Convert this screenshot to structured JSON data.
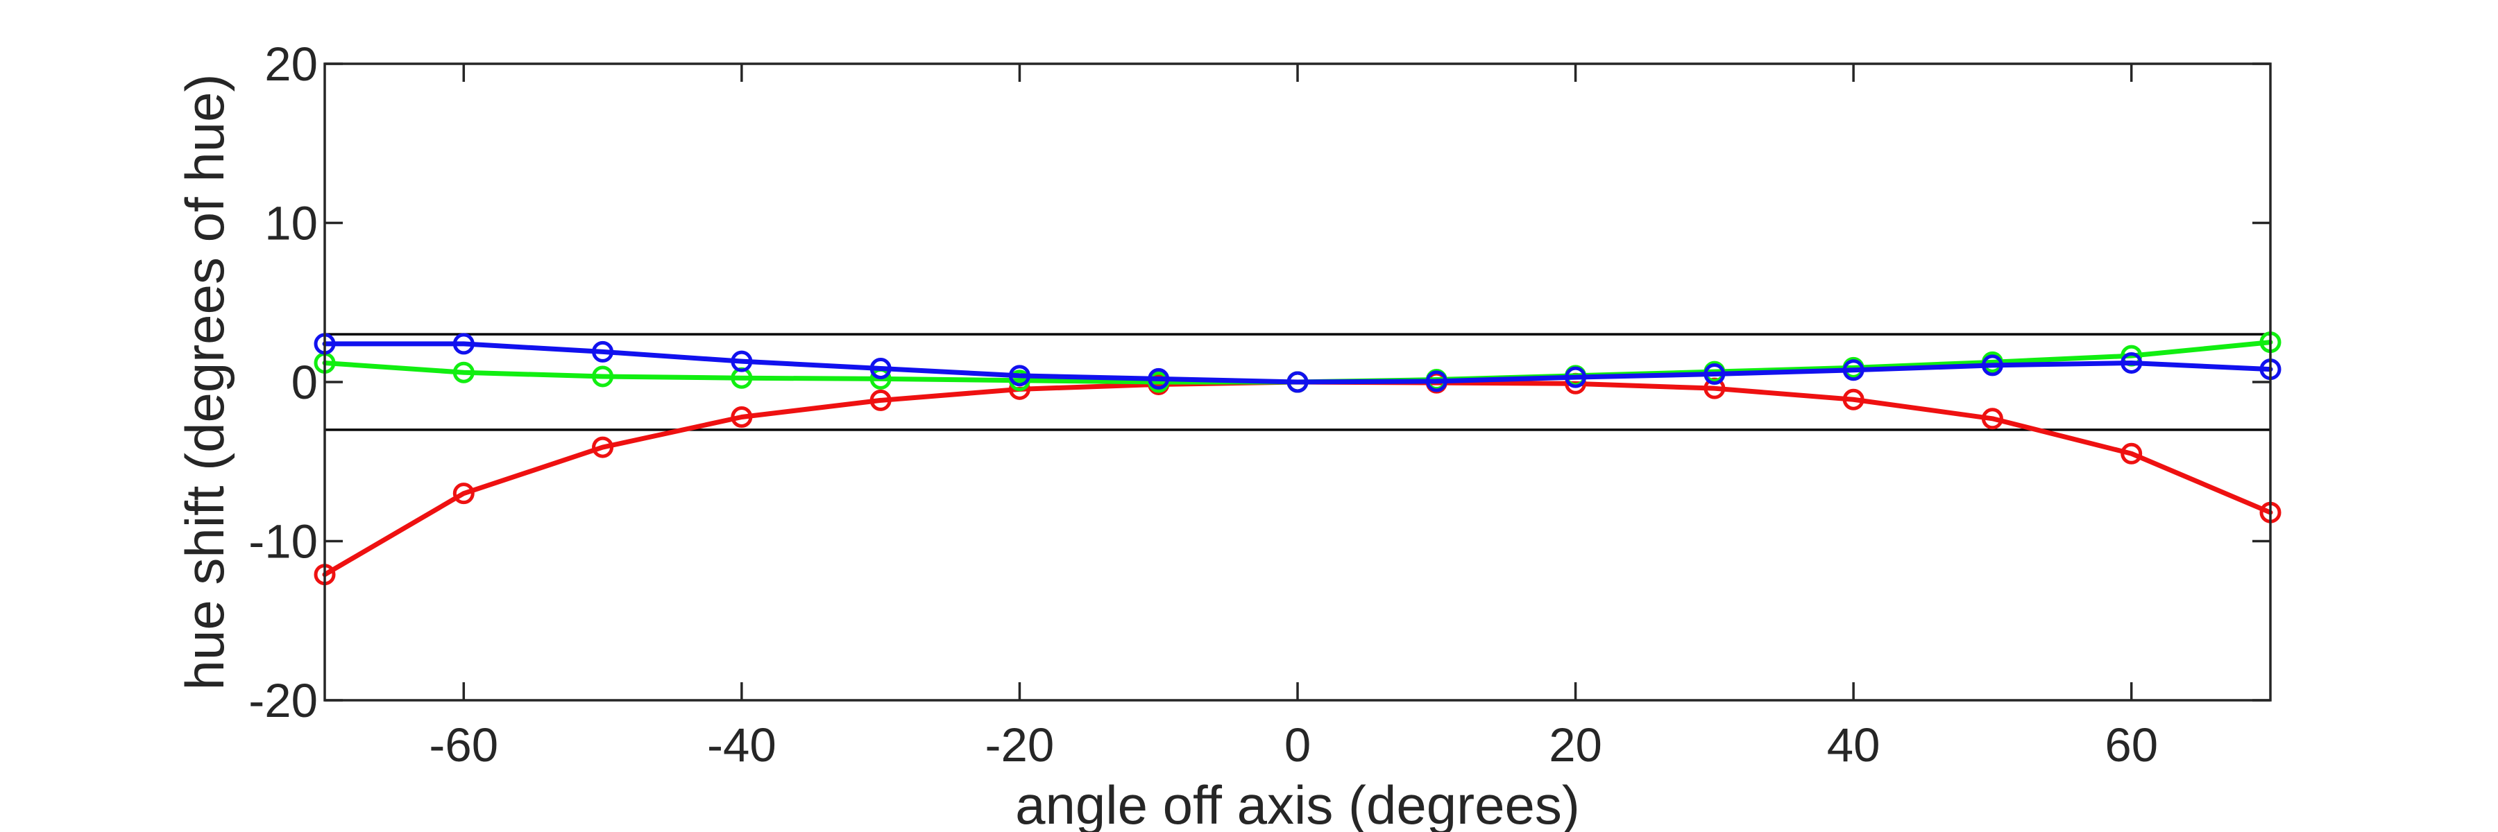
{
  "chart_data": {
    "type": "line",
    "title": "",
    "xlabel": "angle off axis (degrees)",
    "ylabel": "hue shift (degrees of hue)",
    "xlim": [
      -70,
      70
    ],
    "ylim": [
      -20,
      20
    ],
    "xticks": [
      -60,
      -40,
      -20,
      0,
      20,
      40,
      60
    ],
    "yticks": [
      -20,
      -10,
      0,
      10,
      20
    ],
    "grid": false,
    "reference_lines_y": [
      3,
      -3
    ],
    "x": [
      -70,
      -60,
      -50,
      -40,
      -30,
      -20,
      -10,
      0,
      10,
      20,
      30,
      40,
      50,
      60,
      70
    ],
    "series": [
      {
        "color": "#ee1111",
        "values": [
          -12.1,
          -7.0,
          -4.1,
          -2.2,
          -1.15,
          -0.45,
          -0.15,
          0,
          -0.05,
          -0.1,
          -0.4,
          -1.1,
          -2.3,
          -4.5,
          -8.2
        ]
      },
      {
        "color": "#11ee11",
        "values": [
          1.2,
          0.6,
          0.35,
          0.25,
          0.2,
          0.1,
          0.0,
          0,
          0.15,
          0.4,
          0.65,
          0.9,
          1.25,
          1.65,
          2.5
        ]
      },
      {
        "color": "#1111ee",
        "values": [
          2.4,
          2.4,
          1.9,
          1.3,
          0.85,
          0.4,
          0.2,
          0,
          0.05,
          0.3,
          0.5,
          0.75,
          1.05,
          1.2,
          0.8
        ]
      }
    ]
  }
}
